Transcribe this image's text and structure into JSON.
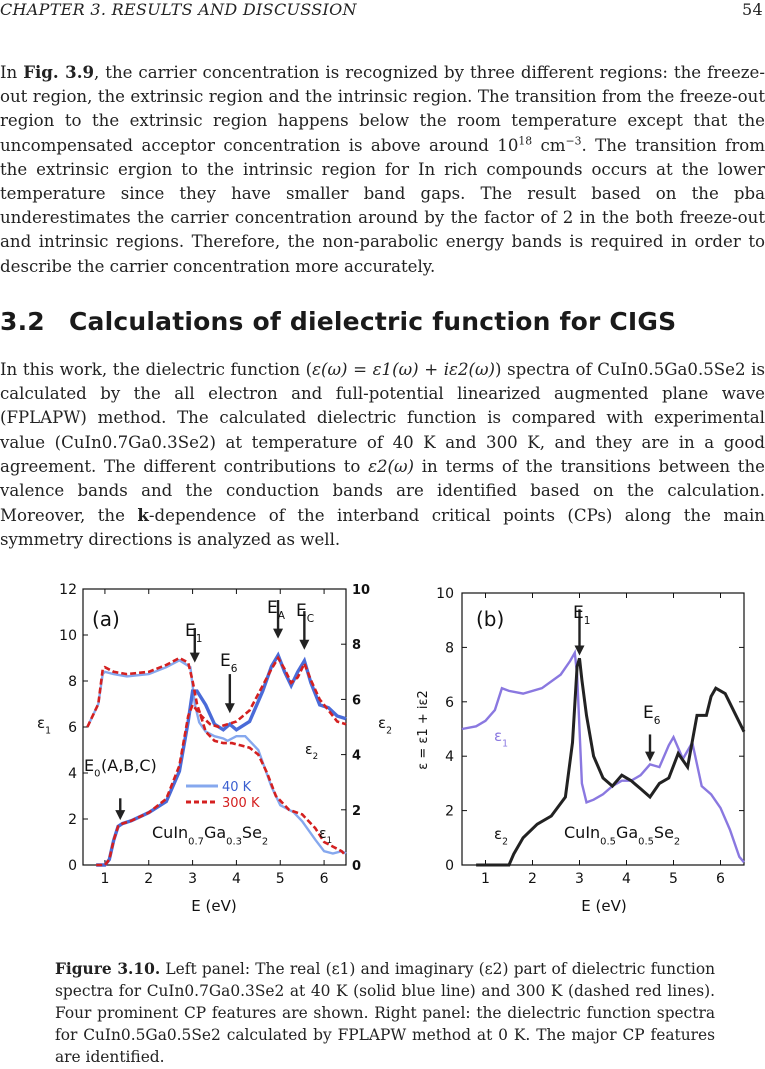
{
  "header": {
    "chapter": "CHAPTER 3.  RESULTS AND DISCUSSION",
    "page": "54"
  },
  "para1": {
    "t1": "In ",
    "fig_ref": "Fig. 3.9",
    "t2": ", the carrier concentration is recognized by three different regions: the freeze-out region, the extrinsic region and the intrinsic region. The transition from the freeze-out region to the extrinsic region happens below the room temperature except that the uncompensated acceptor concentration is above around ",
    "conc_base": "10",
    "conc_exp": "18",
    "t3": " cm",
    "cm_exp": "−3",
    "t4": ". The transition from the extrinsic ergion to the intrinsic region for In rich compounds occurs at the lower temperature since they have smaller band gaps. The result based on the pba underestimates the carrier concentration around by the factor of 2 in the both freeze-out and intrinsic regions. Therefore, the non-parabolic energy bands is required in order to describe the carrier concentration more accurately."
  },
  "section": {
    "number": "3.2",
    "title": "Calculations of dielectric function for CIGS"
  },
  "para2": {
    "t1": "In this work, the dielectric function (",
    "formula": "ε(ω) = ε1(ω) + iε2(ω)",
    "t2": ") spectra of ",
    "compound1": "CuIn0.5Ga0.5Se2",
    "t3": " is calculated by the all electron and full-potential linearized augmented plane wave (FPLAPW) method.  The calculated dielectric function is compared with experimental value (",
    "compound2": "CuIn0.7Ga0.3Se2",
    "t4": ") at temperature of 40 K and 300 K, and they are in a good agreement. The different contributions to ",
    "eps2": "ε2(ω)",
    "t5": " in terms of the transitions between the valence bands and the conduction bands are identified based on the calculation. Moreover, the ",
    "k": "k",
    "t6": "-dependence of the interband critical points (CPs) along the main symmetry directions is analyzed as well."
  },
  "caption": {
    "label": "Figure 3.10.",
    "text": " Left panel: The real (ε1) and imaginary (ε2) part of dielectric function spectra for CuIn0.7Ga0.3Se2 at 40 K (solid blue line) and 300 K (dashed red lines). Four prominent CP features are shown. Right panel: the dielectric function spectra for CuIn0.5Ga0.5Se2 calculated by FPLAPW method at 0 K. The major CP features are identified."
  },
  "colors": {
    "blue_40k": "#4a6bd8",
    "lightblue_40k": "#86a8ee",
    "red_300k": "#d42020",
    "black": "#222222",
    "purple": "#8a78e0"
  },
  "chart_data": [
    {
      "type": "line",
      "panel_label": "(a)",
      "xlabel": "E (eV)",
      "ylabel_left": "ε1",
      "ylabel_right": "ε2",
      "xlim": [
        0.5,
        6.5
      ],
      "ylim_left": [
        0,
        12
      ],
      "ylim_right": [
        0,
        10
      ],
      "x_ticks": [
        "1",
        "2",
        "3",
        "4",
        "5",
        "6"
      ],
      "y_ticks_left": [
        "0",
        "2",
        "4",
        "6",
        "8",
        "10",
        "12"
      ],
      "y_ticks_right": [
        "0",
        "2",
        "4",
        "6",
        "8",
        "10"
      ],
      "legend": [
        {
          "label": "40 K",
          "color": "#86a8ee",
          "style": "solid"
        },
        {
          "label": "300 K",
          "color": "#d42020",
          "style": "dashed"
        }
      ],
      "compound_label": "CuIn0.7Ga0.3Se2",
      "annotations": [
        {
          "label": "E0(A,B,C)",
          "x": 1.35
        },
        {
          "label": "E1",
          "x": 3.05
        },
        {
          "label": "E6",
          "x": 3.85
        },
        {
          "label": "EA",
          "x": 4.95
        },
        {
          "label": "EC",
          "x": 5.55
        }
      ],
      "curve_labels": [
        "ε2",
        "ε1"
      ],
      "series": [
        {
          "name": "ε1 40 K",
          "axis": "left",
          "x": [
            0.6,
            0.85,
            0.95,
            1.0,
            1.2,
            1.5,
            2.0,
            2.4,
            2.7,
            2.95,
            3.05,
            3.15,
            3.3,
            3.5,
            3.7,
            3.8,
            4.0,
            4.2,
            4.5,
            4.8,
            5.0,
            5.3,
            5.5,
            5.8,
            6.0,
            6.2,
            6.4,
            6.5
          ],
          "y": [
            6.0,
            7.0,
            8.3,
            8.4,
            8.3,
            8.2,
            8.3,
            8.6,
            8.9,
            8.6,
            7.0,
            6.2,
            5.8,
            5.6,
            5.5,
            5.4,
            5.6,
            5.6,
            5.0,
            3.4,
            2.6,
            2.3,
            1.9,
            1.1,
            0.6,
            0.5,
            0.6,
            0.5
          ]
        },
        {
          "name": "ε1 300 K",
          "axis": "left",
          "x": [
            0.6,
            0.85,
            0.95,
            1.0,
            1.2,
            1.5,
            2.0,
            2.4,
            2.7,
            2.9,
            3.0,
            3.1,
            3.3,
            3.5,
            3.7,
            3.9,
            4.1,
            4.3,
            4.5,
            4.7,
            4.9,
            5.2,
            5.5,
            5.8,
            6.0,
            6.2,
            6.4,
            6.5
          ],
          "y": [
            6.0,
            7.0,
            8.5,
            8.6,
            8.4,
            8.3,
            8.4,
            8.7,
            9.0,
            8.8,
            8.0,
            7.0,
            5.8,
            5.4,
            5.3,
            5.3,
            5.2,
            5.1,
            4.8,
            4.0,
            3.0,
            2.4,
            2.2,
            1.6,
            1.0,
            0.8,
            0.6,
            0.4
          ]
        },
        {
          "name": "ε2 40 K",
          "axis": "right",
          "x": [
            0.8,
            1.0,
            1.1,
            1.2,
            1.3,
            1.4,
            1.6,
            2.0,
            2.4,
            2.7,
            2.9,
            3.0,
            3.1,
            3.3,
            3.5,
            3.7,
            3.85,
            4.0,
            4.3,
            4.6,
            4.8,
            4.95,
            5.1,
            5.25,
            5.4,
            5.55,
            5.7,
            5.9,
            6.1,
            6.3,
            6.5
          ],
          "y": [
            0.0,
            0.0,
            0.2,
            0.9,
            1.4,
            1.5,
            1.6,
            1.9,
            2.3,
            3.4,
            5.2,
            6.3,
            6.3,
            5.8,
            5.1,
            4.9,
            5.1,
            4.9,
            5.2,
            6.3,
            7.2,
            7.6,
            7.0,
            6.5,
            7.0,
            7.4,
            6.6,
            5.8,
            5.7,
            5.4,
            5.3
          ]
        },
        {
          "name": "ε2 300 K",
          "axis": "right",
          "x": [
            0.8,
            1.0,
            1.1,
            1.2,
            1.3,
            1.4,
            1.6,
            2.0,
            2.4,
            2.7,
            2.9,
            3.0,
            3.2,
            3.4,
            3.6,
            3.8,
            4.0,
            4.3,
            4.6,
            4.8,
            4.95,
            5.1,
            5.25,
            5.4,
            5.55,
            5.7,
            5.9,
            6.1,
            6.3,
            6.5
          ],
          "y": [
            0.0,
            0.0,
            0.2,
            0.9,
            1.4,
            1.5,
            1.6,
            1.9,
            2.4,
            3.6,
            5.4,
            5.8,
            5.4,
            5.1,
            5.0,
            5.1,
            5.2,
            5.6,
            6.5,
            7.1,
            7.5,
            7.1,
            6.6,
            6.8,
            7.3,
            6.7,
            6.0,
            5.6,
            5.2,
            5.1
          ]
        }
      ]
    },
    {
      "type": "line",
      "panel_label": "(b)",
      "xlabel": "E (eV)",
      "ylabel": "ε = ε1 + iε2",
      "xlim": [
        0.5,
        6.5
      ],
      "ylim": [
        0,
        10
      ],
      "x_ticks": [
        "1",
        "2",
        "3",
        "4",
        "5",
        "6"
      ],
      "y_ticks": [
        "0",
        "2",
        "4",
        "6",
        "8",
        "10"
      ],
      "compound_label": "CuIn0.5Ga0.5Se2",
      "annotations": [
        {
          "label": "E1",
          "x": 3.0
        },
        {
          "label": "E6",
          "x": 4.5
        }
      ],
      "curve_labels": [
        "ε1",
        "ε2"
      ],
      "series": [
        {
          "name": "ε1",
          "x": [
            0.5,
            0.8,
            1.0,
            1.2,
            1.35,
            1.5,
            1.8,
            2.2,
            2.6,
            2.8,
            2.9,
            2.95,
            3.05,
            3.15,
            3.3,
            3.5,
            3.7,
            3.9,
            4.1,
            4.3,
            4.5,
            4.7,
            4.9,
            5.0,
            5.2,
            5.4,
            5.6,
            5.8,
            6.0,
            6.2,
            6.4,
            6.5
          ],
          "y": [
            5.0,
            5.1,
            5.3,
            5.7,
            6.5,
            6.4,
            6.3,
            6.5,
            7.0,
            7.5,
            7.8,
            7.0,
            3.0,
            2.3,
            2.4,
            2.6,
            2.9,
            3.1,
            3.1,
            3.3,
            3.7,
            3.6,
            4.4,
            4.7,
            3.9,
            4.5,
            2.9,
            2.6,
            2.1,
            1.3,
            0.3,
            0.1
          ]
        },
        {
          "name": "ε2",
          "x": [
            0.8,
            1.0,
            1.3,
            1.5,
            1.6,
            1.8,
            2.1,
            2.4,
            2.7,
            2.85,
            2.95,
            3.0,
            3.05,
            3.15,
            3.3,
            3.5,
            3.7,
            3.9,
            4.1,
            4.3,
            4.5,
            4.7,
            4.9,
            5.1,
            5.3,
            5.5,
            5.7,
            5.8,
            5.9,
            6.1,
            6.3,
            6.5
          ],
          "y": [
            0.0,
            0.0,
            0.0,
            0.0,
            0.4,
            1.0,
            1.5,
            1.8,
            2.5,
            4.5,
            7.3,
            7.6,
            6.8,
            5.5,
            4.0,
            3.2,
            2.9,
            3.3,
            3.1,
            2.8,
            2.5,
            3.0,
            3.2,
            4.1,
            3.6,
            5.5,
            5.5,
            6.2,
            6.5,
            6.3,
            5.6,
            4.9
          ]
        }
      ]
    }
  ]
}
